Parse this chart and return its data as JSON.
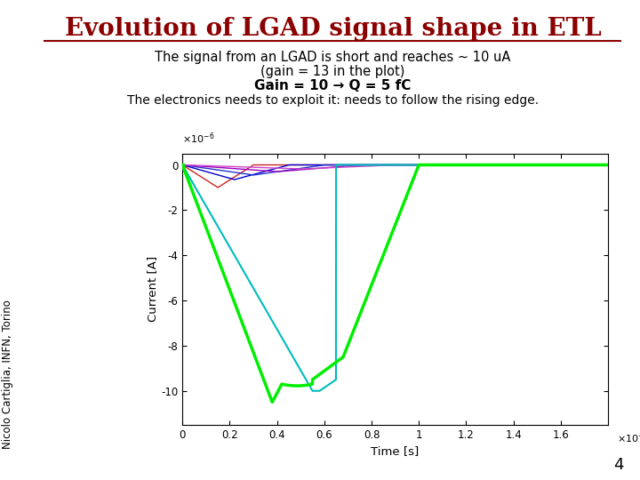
{
  "title": "Evolution of LGAD signal shape in ETL",
  "title_color": "#8B0000",
  "subtitle1": "The signal from an LGAD is short and reaches ~ 10 uA",
  "subtitle2": "(gain = 13 in the plot)",
  "subtitle3_bold": "Gain = 10 → Q = 5 fC",
  "subtitle4": "The electronics needs to exploit it: needs to follow the rising edge.",
  "xlabel": "Time [s]",
  "ylabel": "Current [A]",
  "xlim": [
    0,
    1.8e-06
  ],
  "ylim": [
    -1.15e-05,
    5e-07
  ],
  "yticks": [
    0,
    -2e-06,
    -4e-06,
    -6e-06,
    -8e-06,
    -1e-05
  ],
  "ytick_labels": [
    "0",
    "-2",
    "-4",
    "-6",
    "-8",
    "-10"
  ],
  "xticks": [
    0,
    2e-07,
    4e-07,
    6e-07,
    8e-07,
    1e-06,
    1.2e-06,
    1.4e-06,
    1.6e-06
  ],
  "xtick_labels": [
    "0",
    "0.2",
    "0.4",
    "0.6",
    "0.8",
    "1",
    "1.2",
    "1.4",
    "1.6"
  ],
  "sidebar_text": "Nicolo Cartiglia, INFN, Torino",
  "page_number": "4",
  "bg_color": "#ffffff",
  "plot_bg_color": "#ffffff",
  "sidebar_color": "#8B0000",
  "line_green_color": "#00ee00",
  "line_cyan_color": "#00bbbb",
  "line_red_color": "#cc2222",
  "line_blue_color": "#2233cc",
  "line_magenta_color": "#cc44cc",
  "line_purple_color": "#9900bb",
  "line_dark_blue_color": "#0000cc"
}
